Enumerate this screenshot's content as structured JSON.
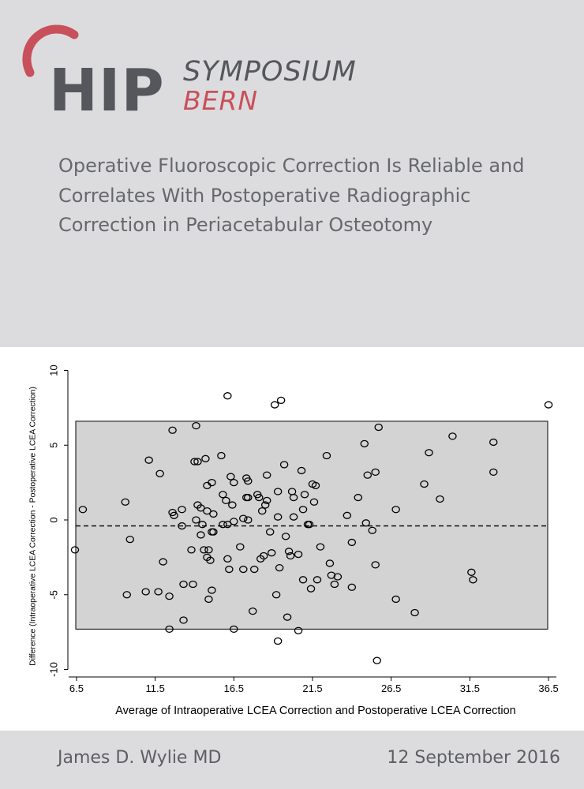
{
  "logo": {
    "hip": "HIP",
    "symposium": "SYMPOSIUM",
    "bern": "BERN",
    "accent_color": "#c8505a",
    "text_color": "#55575c"
  },
  "title": "Operative Fluoroscopic Correction Is Reliable and Correlates With Postoperative Radiographic Correction in Periacetabular Osteotomy",
  "footer": {
    "author": "James D. Wylie MD",
    "date": "12 September 2016"
  },
  "chart_data": {
    "type": "scatter",
    "xlabel": "Average of Intraoperative LCEA Correction and Postoperative LCEA Correction",
    "ylabel": "Difference (Intraoperative LCEA Correction - Postoperative LCEA Correction)",
    "xlim": [
      6.0,
      37.0
    ],
    "ylim": [
      -10.5,
      10.5
    ],
    "xticks": [
      6.5,
      11.5,
      16.5,
      21.5,
      26.5,
      31.5,
      36.5
    ],
    "xtick_labels": [
      "6.5",
      "11.5",
      "16.5",
      "21.5",
      "26.5",
      "31.5",
      "36.5"
    ],
    "yticks": [
      10,
      5,
      0,
      -5,
      -10
    ],
    "ytick_labels": [
      "10",
      "5",
      "0",
      "-5",
      "-10"
    ],
    "mean_difference": -0.4,
    "limits_of_agreement": [
      -7.3,
      6.6
    ],
    "band_color": "#d3d3d3",
    "points": [
      [
        6.4,
        -2.0
      ],
      [
        6.9,
        0.7
      ],
      [
        9.6,
        1.2
      ],
      [
        9.7,
        -5.0
      ],
      [
        9.9,
        -1.3
      ],
      [
        10.9,
        -4.8
      ],
      [
        11.1,
        4.0
      ],
      [
        11.7,
        -4.8
      ],
      [
        11.8,
        3.1
      ],
      [
        12.0,
        -2.8
      ],
      [
        12.4,
        -7.3
      ],
      [
        12.4,
        -5.1
      ],
      [
        12.6,
        0.5
      ],
      [
        12.6,
        6.0
      ],
      [
        12.7,
        0.3
      ],
      [
        13.2,
        0.7
      ],
      [
        13.2,
        -0.4
      ],
      [
        13.3,
        -4.3
      ],
      [
        13.3,
        -6.7
      ],
      [
        13.8,
        -2.0
      ],
      [
        13.9,
        -4.3
      ],
      [
        14.0,
        3.9
      ],
      [
        14.1,
        0.0
      ],
      [
        14.1,
        6.3
      ],
      [
        14.2,
        3.9
      ],
      [
        14.2,
        1.0
      ],
      [
        14.4,
        0.8
      ],
      [
        14.4,
        -1.0
      ],
      [
        14.5,
        -0.3
      ],
      [
        14.6,
        -2.0
      ],
      [
        14.7,
        4.1
      ],
      [
        14.8,
        0.6
      ],
      [
        14.8,
        2.3
      ],
      [
        14.8,
        -2.5
      ],
      [
        14.9,
        -5.3
      ],
      [
        14.9,
        -2.0
      ],
      [
        15.0,
        -2.7
      ],
      [
        15.1,
        2.5
      ],
      [
        15.1,
        -0.8
      ],
      [
        15.1,
        -4.7
      ],
      [
        15.2,
        0.4
      ],
      [
        15.2,
        -0.8
      ],
      [
        15.7,
        4.3
      ],
      [
        15.8,
        1.7
      ],
      [
        15.8,
        -0.3
      ],
      [
        16.0,
        1.3
      ],
      [
        16.1,
        8.3
      ],
      [
        16.1,
        -0.3
      ],
      [
        16.1,
        -2.6
      ],
      [
        16.2,
        -3.3
      ],
      [
        16.3,
        2.9
      ],
      [
        16.4,
        1.0
      ],
      [
        16.5,
        -0.1
      ],
      [
        16.5,
        -7.3
      ],
      [
        16.5,
        2.5
      ],
      [
        16.9,
        -1.8
      ],
      [
        17.1,
        -3.3
      ],
      [
        17.1,
        0.1
      ],
      [
        17.3,
        1.5
      ],
      [
        17.3,
        2.8
      ],
      [
        17.4,
        2.6
      ],
      [
        17.4,
        1.5
      ],
      [
        17.4,
        0.0
      ],
      [
        17.7,
        -6.1
      ],
      [
        17.8,
        -3.3
      ],
      [
        18.0,
        1.7
      ],
      [
        18.1,
        1.5
      ],
      [
        18.2,
        -2.6
      ],
      [
        18.3,
        0.6
      ],
      [
        18.4,
        -2.4
      ],
      [
        18.5,
        1.0
      ],
      [
        18.6,
        1.3
      ],
      [
        18.6,
        3.0
      ],
      [
        18.8,
        -0.8
      ],
      [
        18.9,
        -2.2
      ],
      [
        19.1,
        7.7
      ],
      [
        19.2,
        -5.0
      ],
      [
        19.3,
        -8.1
      ],
      [
        19.3,
        0.2
      ],
      [
        19.3,
        1.9
      ],
      [
        19.4,
        -3.2
      ],
      [
        19.5,
        8.0
      ],
      [
        19.7,
        3.7
      ],
      [
        19.8,
        -1.1
      ],
      [
        19.9,
        -6.5
      ],
      [
        20.0,
        -2.1
      ],
      [
        20.1,
        -2.4
      ],
      [
        20.2,
        1.9
      ],
      [
        20.3,
        0.2
      ],
      [
        20.3,
        1.5
      ],
      [
        20.6,
        -2.3
      ],
      [
        20.6,
        -7.4
      ],
      [
        20.8,
        3.3
      ],
      [
        20.9,
        -4.0
      ],
      [
        20.9,
        0.7
      ],
      [
        21.0,
        1.7
      ],
      [
        21.2,
        -0.3
      ],
      [
        21.3,
        -0.3
      ],
      [
        21.4,
        -4.6
      ],
      [
        21.5,
        2.4
      ],
      [
        21.6,
        1.2
      ],
      [
        21.7,
        2.3
      ],
      [
        21.8,
        -4.0
      ],
      [
        22.0,
        -1.8
      ],
      [
        22.4,
        4.3
      ],
      [
        22.6,
        -2.9
      ],
      [
        22.7,
        -3.7
      ],
      [
        22.9,
        -4.3
      ],
      [
        23.1,
        -3.8
      ],
      [
        23.7,
        0.3
      ],
      [
        24.0,
        -4.5
      ],
      [
        24.0,
        -1.5
      ],
      [
        24.4,
        1.5
      ],
      [
        24.8,
        5.1
      ],
      [
        24.9,
        -0.2
      ],
      [
        25.0,
        3.0
      ],
      [
        25.3,
        -0.7
      ],
      [
        25.5,
        3.2
      ],
      [
        25.5,
        -3.0
      ],
      [
        25.6,
        -9.4
      ],
      [
        25.7,
        6.2
      ],
      [
        26.8,
        -5.3
      ],
      [
        26.8,
        0.7
      ],
      [
        28.0,
        -6.2
      ],
      [
        28.6,
        2.4
      ],
      [
        28.9,
        4.5
      ],
      [
        29.6,
        1.4
      ],
      [
        30.4,
        5.6
      ],
      [
        31.6,
        -3.5
      ],
      [
        31.7,
        -4.0
      ],
      [
        33.0,
        5.2
      ],
      [
        33.0,
        3.2
      ],
      [
        36.5,
        7.7
      ]
    ]
  }
}
